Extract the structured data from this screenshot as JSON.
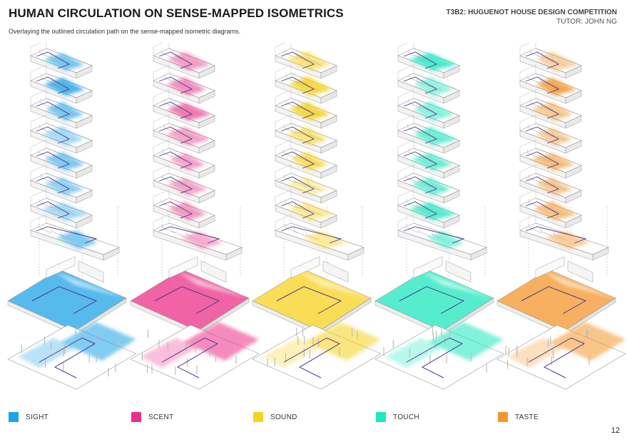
{
  "header": {
    "title": "HUMAN CIRCULATION ON SENSE-MAPPED ISOMETRICS",
    "subtitle": "Overlaying the outlined circulation path on the sense-mapped isometric diagrams.",
    "competition": "T3B2: HUGUENOT HOUSE DESIGN COMPETITION",
    "tutor": "TUTOR: JOHN NG"
  },
  "senses": [
    {
      "label": "SIGHT",
      "color": "#1ea3e8"
    },
    {
      "label": "SCENT",
      "color": "#ec2f86"
    },
    {
      "label": "SOUND",
      "color": "#f7d21e"
    },
    {
      "label": "TOUCH",
      "color": "#1ee8c0"
    },
    {
      "label": "TASTE",
      "color": "#f5962a"
    }
  ],
  "page_number": "12"
}
